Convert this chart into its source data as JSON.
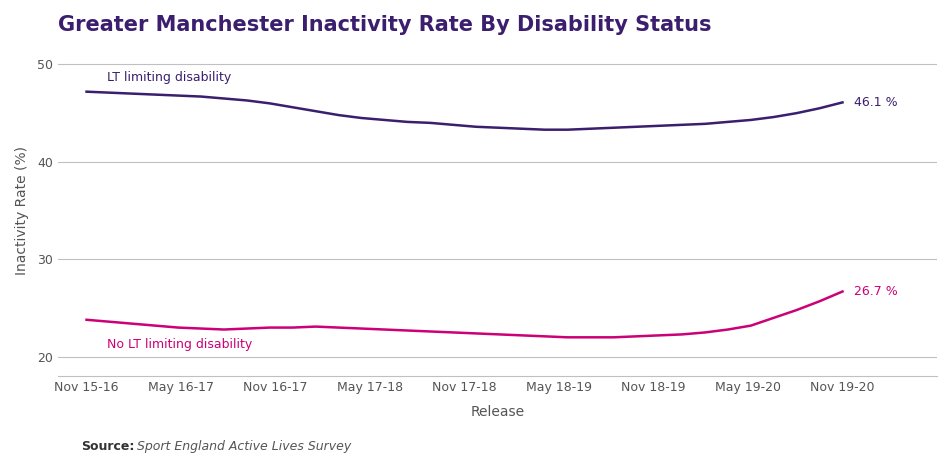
{
  "title": "Greater Manchester Inactivity Rate By Disability Status",
  "xlabel": "Release",
  "ylabel": "Inactivity Rate (%)",
  "x_labels": [
    "Nov 15-16",
    "May 16-17",
    "Nov 16-17",
    "May 17-18",
    "Nov 17-18",
    "May 18-19",
    "Nov 18-19",
    "May 19-20",
    "Nov 19-20"
  ],
  "lt_disability": [
    47.2,
    47.1,
    47.0,
    46.9,
    46.8,
    46.7,
    46.5,
    46.3,
    46.0,
    45.6,
    45.2,
    44.8,
    44.5,
    44.3,
    44.1,
    44.0,
    43.8,
    43.6,
    43.5,
    43.4,
    43.3,
    43.3,
    43.4,
    43.5,
    43.6,
    43.7,
    43.8,
    43.9,
    44.1,
    44.3,
    44.6,
    45.0,
    45.5,
    46.1
  ],
  "no_lt_disability": [
    23.8,
    23.6,
    23.4,
    23.2,
    23.0,
    22.9,
    22.8,
    22.9,
    23.0,
    23.0,
    23.1,
    23.0,
    22.9,
    22.8,
    22.7,
    22.6,
    22.5,
    22.4,
    22.3,
    22.2,
    22.1,
    22.0,
    22.0,
    22.0,
    22.1,
    22.2,
    22.3,
    22.5,
    22.8,
    23.2,
    24.0,
    24.8,
    25.7,
    26.7
  ],
  "lt_color": "#3b1f6e",
  "no_lt_color": "#cc0077",
  "lt_label": "LT limiting disability",
  "no_lt_label": "No LT limiting disability",
  "lt_end_label": "46.1 %",
  "no_lt_end_label": "26.7 %",
  "ylim": [
    18,
    52
  ],
  "yticks": [
    20,
    30,
    40,
    50
  ],
  "title_color": "#3b1f6e",
  "title_fontsize": 15,
  "source_bold": "Source:",
  "source_italic": "  Sport England Active Lives Survey",
  "background_color": "#ffffff",
  "grid_color": "#c0c0c0"
}
